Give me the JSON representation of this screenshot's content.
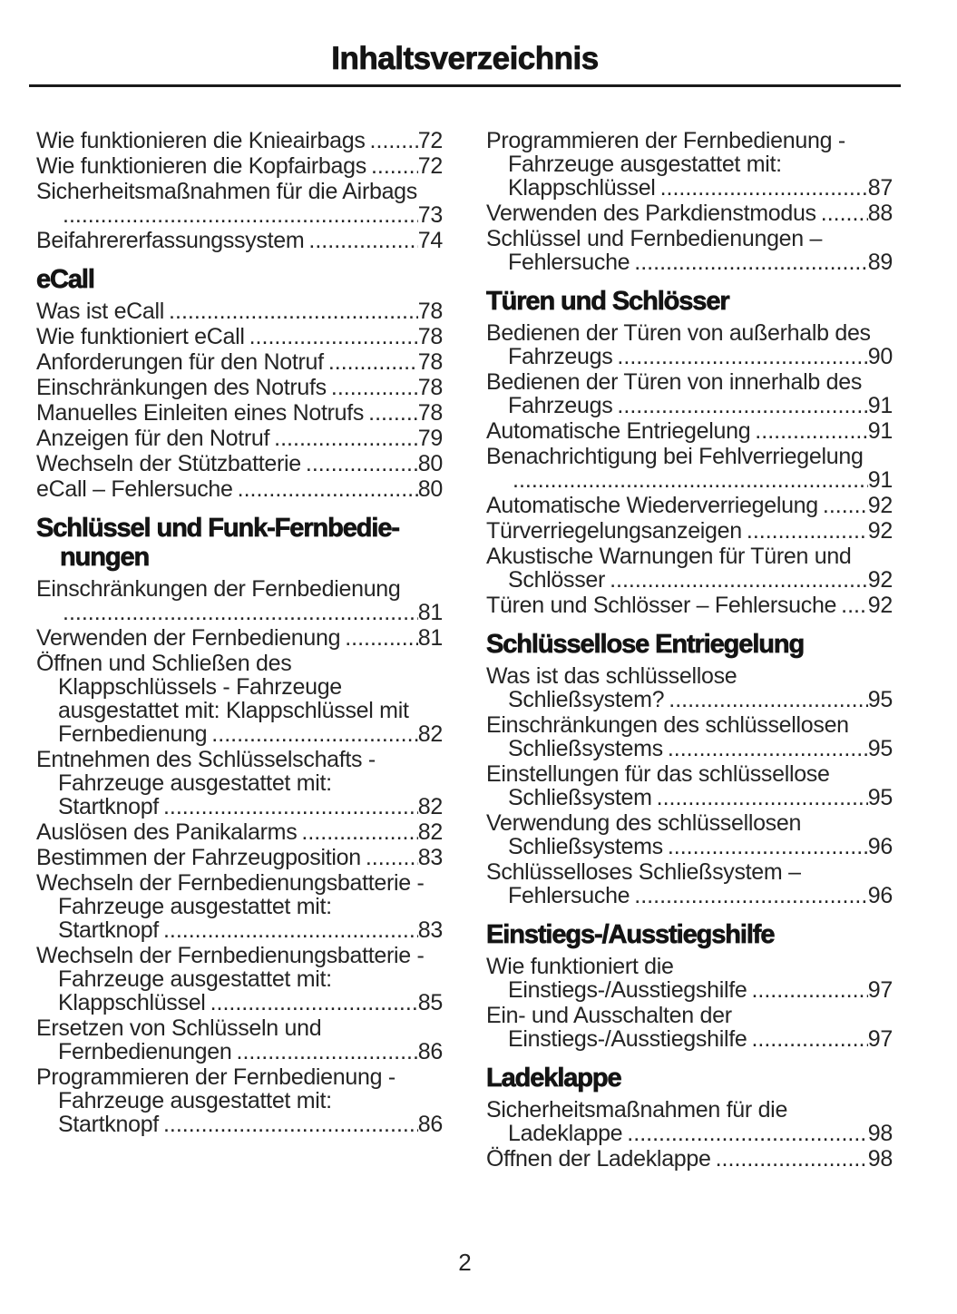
{
  "page": {
    "title": "Inhaltsverzeichnis",
    "footer_page_number": "2",
    "colors": {
      "background": "#ffffff",
      "text": "#242424",
      "heading": "#141414",
      "rule": "#1a1a1a"
    },
    "columns": [
      {
        "sections": [
          {
            "heading_lines": [],
            "entries": [
              {
                "lines": [
                  "Wie funktionieren die Knieairbags"
                ],
                "page": "72"
              },
              {
                "lines": [
                  "Wie funktionieren die Kopfairbags"
                ],
                "page": "72"
              },
              {
                "lines": [
                  "Sicherheitsmaßnahmen für die Airbags",
                  ""
                ],
                "page": "73"
              },
              {
                "lines": [
                  "Beifahrererfassungssystem"
                ],
                "page": "74"
              }
            ]
          },
          {
            "heading_lines": [
              "eCall"
            ],
            "entries": [
              {
                "lines": [
                  "Was ist eCall"
                ],
                "page": "78"
              },
              {
                "lines": [
                  "Wie funktioniert eCall"
                ],
                "page": "78"
              },
              {
                "lines": [
                  "Anforderungen für den Notruf"
                ],
                "page": "78"
              },
              {
                "lines": [
                  "Einschränkungen des Notrufs"
                ],
                "page": "78"
              },
              {
                "lines": [
                  "Manuelles Einleiten eines Notrufs"
                ],
                "page": "78"
              },
              {
                "lines": [
                  "Anzeigen für den Notruf"
                ],
                "page": "79"
              },
              {
                "lines": [
                  "Wechseln der Stützbatterie"
                ],
                "page": "80"
              },
              {
                "lines": [
                  "eCall – Fehlersuche"
                ],
                "page": "80"
              }
            ]
          },
          {
            "heading_lines": [
              "Schlüssel und Funk-Fernbedie-",
              "nungen"
            ],
            "entries": [
              {
                "lines": [
                  "Einschränkungen der Fernbedienung",
                  ""
                ],
                "page": "81"
              },
              {
                "lines": [
                  "Verwenden der Fernbedienung"
                ],
                "page": "81"
              },
              {
                "lines": [
                  "Öffnen und Schließen des",
                  "Klappschlüssels - Fahrzeuge",
                  "ausgestattet mit: Klappschlüssel mit",
                  "Fernbedienung"
                ],
                "page": "82"
              },
              {
                "lines": [
                  "Entnehmen des Schlüsselschafts -",
                  "Fahrzeuge ausgestattet mit:",
                  "Startknopf"
                ],
                "page": "82"
              },
              {
                "lines": [
                  "Auslösen des Panikalarms"
                ],
                "page": "82"
              },
              {
                "lines": [
                  "Bestimmen der Fahrzeugposition"
                ],
                "page": "83"
              },
              {
                "lines": [
                  "Wechseln der Fernbedienungsbatterie -",
                  "Fahrzeuge ausgestattet mit:",
                  "Startknopf"
                ],
                "page": "83"
              },
              {
                "lines": [
                  "Wechseln der Fernbedienungsbatterie -",
                  "Fahrzeuge ausgestattet mit:",
                  "Klappschlüssel"
                ],
                "page": "85"
              },
              {
                "lines": [
                  "Ersetzen von Schlüsseln und",
                  "Fernbedienungen"
                ],
                "page": "86"
              },
              {
                "lines": [
                  "Programmieren der Fernbedienung -",
                  "Fahrzeuge ausgestattet mit:",
                  "Startknopf"
                ],
                "page": "86"
              }
            ]
          }
        ]
      },
      {
        "sections": [
          {
            "heading_lines": [],
            "entries": [
              {
                "lines": [
                  "Programmieren der Fernbedienung -",
                  "Fahrzeuge ausgestattet mit:",
                  "Klappschlüssel"
                ],
                "page": "87"
              },
              {
                "lines": [
                  "Verwenden des Parkdienstmodus"
                ],
                "page": "88"
              },
              {
                "lines": [
                  "Schlüssel und Fernbedienungen –",
                  "Fehlersuche"
                ],
                "page": "89"
              }
            ]
          },
          {
            "heading_lines": [
              "Türen und Schlösser"
            ],
            "entries": [
              {
                "lines": [
                  "Bedienen der Türen von außerhalb des",
                  "Fahrzeugs"
                ],
                "page": "90"
              },
              {
                "lines": [
                  "Bedienen der Türen von innerhalb des",
                  "Fahrzeugs"
                ],
                "page": "91"
              },
              {
                "lines": [
                  "Automatische Entriegelung"
                ],
                "page": "91"
              },
              {
                "lines": [
                  "Benachrichtigung bei Fehlverriegelung",
                  ""
                ],
                "page": "91"
              },
              {
                "lines": [
                  "Automatische Wiederverriegelung"
                ],
                "page": "92"
              },
              {
                "lines": [
                  "Türverriegelungsanzeigen"
                ],
                "page": "92"
              },
              {
                "lines": [
                  "Akustische Warnungen für Türen und",
                  "Schlösser"
                ],
                "page": "92"
              },
              {
                "lines": [
                  "Türen und Schlösser – Fehlersuche"
                ],
                "page": "92"
              }
            ]
          },
          {
            "heading_lines": [
              "Schlüssellose Entriegelung"
            ],
            "entries": [
              {
                "lines": [
                  "Was ist das schlüssellose",
                  "Schließsystem?"
                ],
                "page": "95"
              },
              {
                "lines": [
                  "Einschränkungen des schlüssellosen",
                  "Schließsystems"
                ],
                "page": "95"
              },
              {
                "lines": [
                  "Einstellungen für das schlüssellose",
                  "Schließsystem"
                ],
                "page": "95"
              },
              {
                "lines": [
                  "Verwendung des schlüssellosen",
                  "Schließsystems"
                ],
                "page": "96"
              },
              {
                "lines": [
                  "Schlüsselloses Schließsystem –",
                  "Fehlersuche"
                ],
                "page": "96"
              }
            ]
          },
          {
            "heading_lines": [
              "Einstiegs-/Ausstiegshilfe"
            ],
            "entries": [
              {
                "lines": [
                  "Wie funktioniert die",
                  "Einstiegs-/Ausstiegshilfe"
                ],
                "page": "97"
              },
              {
                "lines": [
                  "Ein- und Ausschalten der",
                  "Einstiegs-/Ausstiegshilfe"
                ],
                "page": "97"
              }
            ]
          },
          {
            "heading_lines": [
              "Ladeklappe"
            ],
            "entries": [
              {
                "lines": [
                  "Sicherheitsmaßnahmen für die",
                  "Ladeklappe"
                ],
                "page": "98"
              },
              {
                "lines": [
                  "Öffnen der Ladeklappe"
                ],
                "page": "98"
              }
            ]
          }
        ]
      }
    ]
  }
}
